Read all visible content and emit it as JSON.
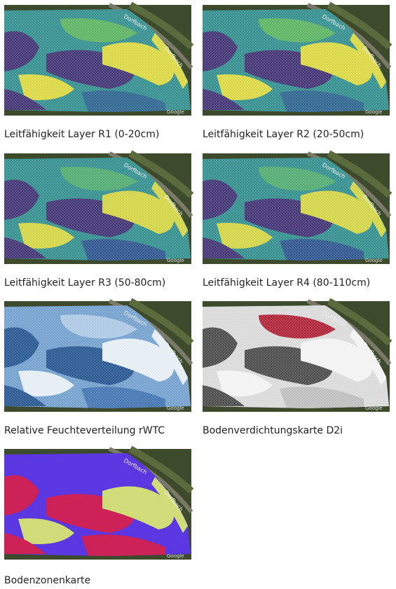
{
  "maps": [
    {
      "caption": "Leitfähigkeit Layer R1 (0-20cm)"
    },
    {
      "caption": "Leitfähigkeit Layer R2 (20-50cm)"
    },
    {
      "caption": "Leitfähigkeit Layer R3 (50-80cm)"
    },
    {
      "caption": "Leitfähigkeit Layer R4 (80-110cm)"
    },
    {
      "caption": "Relative Feuchteverteilung rWTC"
    },
    {
      "caption": "Bodenverdichtungskarte D2i"
    },
    {
      "caption": "Bodenzonenkarte"
    }
  ],
  "street_label": "Dorfbach",
  "attribution": "Google"
}
